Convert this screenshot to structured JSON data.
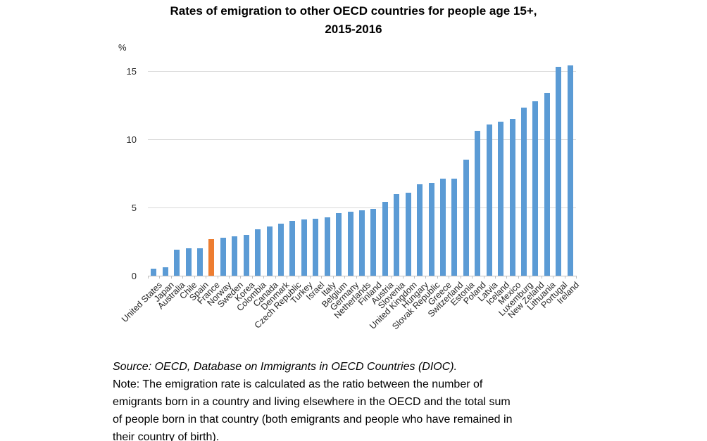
{
  "title": {
    "line1": "Rates of emigration to other OECD countries for people age 15+,",
    "line2": "2015-2016"
  },
  "chart_data": {
    "type": "bar",
    "title": "Rates of emigration to other OECD countries for people age 15+, 2015-2016",
    "xlabel": "",
    "ylabel": "%",
    "ylim": [
      0,
      15
    ],
    "yticks": [
      0,
      5,
      10,
      15
    ],
    "grid": true,
    "legend_position": "none",
    "bar_color": "#5B9BD5",
    "highlight_color": "#ED7D31",
    "highlight_category": "France",
    "categories": [
      "United States",
      "Japan",
      "Australia",
      "Chile",
      "Spain",
      "France",
      "Norway",
      "Sweden",
      "Korea",
      "Colombia",
      "Canada",
      "Denmark",
      "Czech Republic",
      "Turkey",
      "Israel",
      "Italy",
      "Belgium",
      "Germany",
      "Netherlands",
      "Finland",
      "Austria",
      "Slovenia",
      "United Kingdom",
      "Hungary",
      "Slovak Republic",
      "Greece",
      "Switzerland",
      "Estonia",
      "Poland",
      "Latvia",
      "Iceland",
      "Mexico",
      "Luxemburg",
      "New Zeland",
      "Lithuania",
      "Portugal",
      "Ireland"
    ],
    "values": [
      0.5,
      0.6,
      1.9,
      2.0,
      2.0,
      2.7,
      2.8,
      2.9,
      3.0,
      3.4,
      3.6,
      3.8,
      4.0,
      4.1,
      4.2,
      4.3,
      4.6,
      4.7,
      4.8,
      4.9,
      5.4,
      6.0,
      6.1,
      6.7,
      6.8,
      7.1,
      7.1,
      8.5,
      10.6,
      11.1,
      11.3,
      11.5,
      12.3,
      12.8,
      13.4,
      15.3,
      15.4
    ]
  },
  "footer": {
    "source": "Source: OECD, Database on Immigrants in OECD Countries (DIOC).",
    "note_lines": [
      "Note: The emigration rate is calculated as the ratio between the number of",
      "emigrants born in a country and living elsewhere in the OECD and the total sum",
      "of people born in that country (both emigrants and people who have remained in",
      "their country of birth)."
    ]
  }
}
